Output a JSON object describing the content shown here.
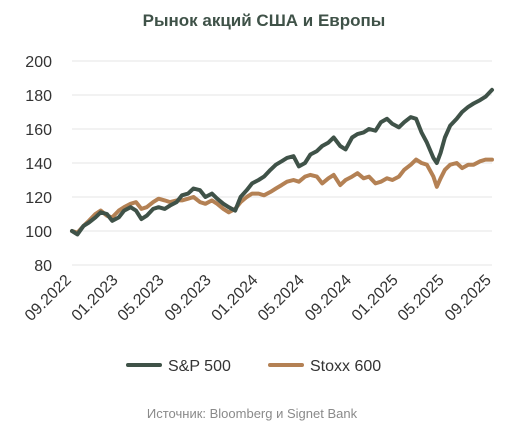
{
  "colors": {
    "sp500": "#3f5248",
    "stoxx600": "#b48154",
    "title": "#3f5248",
    "axis_text": "#333333",
    "grid": "#e6e6e6",
    "source_text": "#8a8a8a"
  },
  "chart_data": {
    "type": "line",
    "title": "Рынок акций США и Европы",
    "ylim": [
      80,
      200
    ],
    "yticks": [
      80,
      100,
      120,
      140,
      160,
      180,
      200
    ],
    "xlim": [
      "2022-09-01",
      "2025-09-01"
    ],
    "xtick_labels": [
      "09.2022",
      "01.2023",
      "05.2023",
      "09.2023",
      "01.2024",
      "05.2024",
      "09.2024",
      "01.2025",
      "05.2025",
      "09.2025"
    ],
    "xtick_dates": [
      "2022-09-01",
      "2023-01-01",
      "2023-05-01",
      "2023-09-01",
      "2024-01-01",
      "2024-05-01",
      "2024-09-01",
      "2025-01-01",
      "2025-05-01",
      "2025-09-01"
    ],
    "grid": true,
    "legend_position": "bottom",
    "series": [
      {
        "name": "S&P 500",
        "key": "sp500",
        "points": [
          [
            "2022-09-01",
            100
          ],
          [
            "2022-09-15",
            98
          ],
          [
            "2022-10-01",
            103
          ],
          [
            "2022-10-15",
            105
          ],
          [
            "2022-11-01",
            108
          ],
          [
            "2022-11-15",
            111
          ],
          [
            "2022-12-01",
            110
          ],
          [
            "2022-12-15",
            106
          ],
          [
            "2023-01-01",
            108
          ],
          [
            "2023-01-15",
            112
          ],
          [
            "2023-02-01",
            114
          ],
          [
            "2023-02-15",
            112
          ],
          [
            "2023-03-01",
            107
          ],
          [
            "2023-03-15",
            109
          ],
          [
            "2023-04-01",
            113
          ],
          [
            "2023-04-15",
            114
          ],
          [
            "2023-05-01",
            113
          ],
          [
            "2023-05-15",
            115
          ],
          [
            "2023-06-01",
            117
          ],
          [
            "2023-06-15",
            121
          ],
          [
            "2023-07-01",
            122
          ],
          [
            "2023-07-15",
            125
          ],
          [
            "2023-08-01",
            124
          ],
          [
            "2023-08-15",
            120
          ],
          [
            "2023-09-01",
            122
          ],
          [
            "2023-09-15",
            119
          ],
          [
            "2023-10-01",
            116
          ],
          [
            "2023-10-15",
            114
          ],
          [
            "2023-11-01",
            112
          ],
          [
            "2023-11-15",
            120
          ],
          [
            "2023-12-01",
            124
          ],
          [
            "2023-12-15",
            128
          ],
          [
            "2024-01-01",
            130
          ],
          [
            "2024-01-15",
            132
          ],
          [
            "2024-02-01",
            136
          ],
          [
            "2024-02-15",
            139
          ],
          [
            "2024-03-01",
            141
          ],
          [
            "2024-03-15",
            143
          ],
          [
            "2024-04-01",
            144
          ],
          [
            "2024-04-15",
            138
          ],
          [
            "2024-05-01",
            140
          ],
          [
            "2024-05-15",
            145
          ],
          [
            "2024-06-01",
            147
          ],
          [
            "2024-06-15",
            150
          ],
          [
            "2024-07-01",
            152
          ],
          [
            "2024-07-15",
            155
          ],
          [
            "2024-08-01",
            150
          ],
          [
            "2024-08-15",
            148
          ],
          [
            "2024-09-01",
            155
          ],
          [
            "2024-09-15",
            157
          ],
          [
            "2024-10-01",
            158
          ],
          [
            "2024-10-15",
            160
          ],
          [
            "2024-11-01",
            159
          ],
          [
            "2024-11-15",
            164
          ],
          [
            "2024-12-01",
            166
          ],
          [
            "2024-12-15",
            163
          ],
          [
            "2025-01-01",
            161
          ],
          [
            "2025-01-15",
            164
          ],
          [
            "2025-02-01",
            167
          ],
          [
            "2025-02-15",
            166
          ],
          [
            "2025-03-01",
            158
          ],
          [
            "2025-03-15",
            152
          ],
          [
            "2025-04-01",
            143
          ],
          [
            "2025-04-10",
            140
          ],
          [
            "2025-04-20",
            146
          ],
          [
            "2025-05-01",
            155
          ],
          [
            "2025-05-15",
            162
          ],
          [
            "2025-06-01",
            166
          ],
          [
            "2025-06-15",
            170
          ],
          [
            "2025-07-01",
            173
          ],
          [
            "2025-07-15",
            175
          ],
          [
            "2025-08-01",
            177
          ],
          [
            "2025-08-15",
            179
          ],
          [
            "2025-09-01",
            183
          ]
        ]
      },
      {
        "name": "Stoxx 600",
        "key": "stoxx600",
        "points": [
          [
            "2022-09-01",
            100
          ],
          [
            "2022-09-15",
            99
          ],
          [
            "2022-10-01",
            103
          ],
          [
            "2022-10-15",
            106
          ],
          [
            "2022-11-01",
            110
          ],
          [
            "2022-11-15",
            112
          ],
          [
            "2022-12-01",
            109
          ],
          [
            "2022-12-15",
            108
          ],
          [
            "2023-01-01",
            112
          ],
          [
            "2023-01-15",
            114
          ],
          [
            "2023-02-01",
            116
          ],
          [
            "2023-02-15",
            117
          ],
          [
            "2023-03-01",
            113
          ],
          [
            "2023-03-15",
            114
          ],
          [
            "2023-04-01",
            117
          ],
          [
            "2023-04-15",
            119
          ],
          [
            "2023-05-01",
            118
          ],
          [
            "2023-05-15",
            117
          ],
          [
            "2023-06-01",
            118
          ],
          [
            "2023-06-15",
            118
          ],
          [
            "2023-07-01",
            119
          ],
          [
            "2023-07-15",
            120
          ],
          [
            "2023-08-01",
            117
          ],
          [
            "2023-08-15",
            116
          ],
          [
            "2023-09-01",
            118
          ],
          [
            "2023-09-15",
            116
          ],
          [
            "2023-10-01",
            113
          ],
          [
            "2023-10-15",
            111
          ],
          [
            "2023-11-01",
            113
          ],
          [
            "2023-11-15",
            117
          ],
          [
            "2023-12-01",
            120
          ],
          [
            "2023-12-15",
            122
          ],
          [
            "2024-01-01",
            122
          ],
          [
            "2024-01-15",
            121
          ],
          [
            "2024-02-01",
            123
          ],
          [
            "2024-02-15",
            125
          ],
          [
            "2024-03-01",
            127
          ],
          [
            "2024-03-15",
            129
          ],
          [
            "2024-04-01",
            130
          ],
          [
            "2024-04-15",
            129
          ],
          [
            "2024-05-01",
            132
          ],
          [
            "2024-05-15",
            133
          ],
          [
            "2024-06-01",
            132
          ],
          [
            "2024-06-15",
            128
          ],
          [
            "2024-07-01",
            131
          ],
          [
            "2024-07-15",
            133
          ],
          [
            "2024-08-01",
            127
          ],
          [
            "2024-08-15",
            130
          ],
          [
            "2024-09-01",
            132
          ],
          [
            "2024-09-15",
            134
          ],
          [
            "2024-10-01",
            131
          ],
          [
            "2024-10-15",
            132
          ],
          [
            "2024-11-01",
            128
          ],
          [
            "2024-11-15",
            129
          ],
          [
            "2024-12-01",
            131
          ],
          [
            "2024-12-15",
            130
          ],
          [
            "2025-01-01",
            132
          ],
          [
            "2025-01-15",
            136
          ],
          [
            "2025-02-01",
            139
          ],
          [
            "2025-02-15",
            142
          ],
          [
            "2025-03-01",
            140
          ],
          [
            "2025-03-15",
            139
          ],
          [
            "2025-04-01",
            132
          ],
          [
            "2025-04-10",
            126
          ],
          [
            "2025-04-20",
            131
          ],
          [
            "2025-05-01",
            136
          ],
          [
            "2025-05-15",
            139
          ],
          [
            "2025-06-01",
            140
          ],
          [
            "2025-06-15",
            137
          ],
          [
            "2025-07-01",
            139
          ],
          [
            "2025-07-15",
            139
          ],
          [
            "2025-08-01",
            141
          ],
          [
            "2025-08-15",
            142
          ],
          [
            "2025-09-01",
            142
          ]
        ]
      }
    ],
    "source": "Источник: Bloomberg и Signet Bank"
  }
}
